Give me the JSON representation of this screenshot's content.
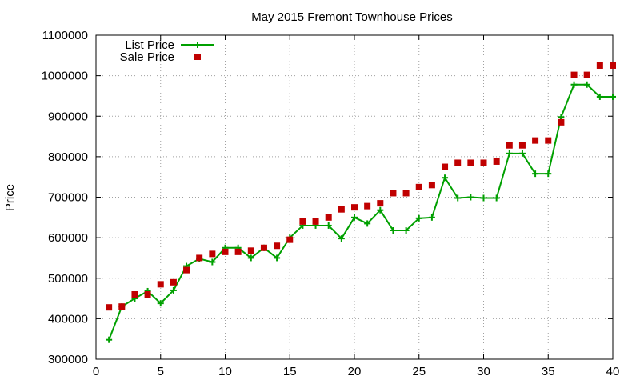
{
  "chart_data": {
    "type": "line",
    "title": "May 2015 Fremont Townhouse Prices",
    "xlabel": "",
    "ylabel": "Price",
    "xlim": [
      0,
      40
    ],
    "ylim": [
      300000,
      1100000
    ],
    "x_ticks": [
      0,
      5,
      10,
      15,
      20,
      25,
      30,
      35,
      40
    ],
    "y_ticks": [
      300000,
      400000,
      500000,
      600000,
      700000,
      800000,
      900000,
      1000000,
      1100000
    ],
    "grid": true,
    "legend_position": "top-left",
    "x": [
      1,
      2,
      3,
      4,
      5,
      6,
      7,
      8,
      9,
      10,
      11,
      12,
      13,
      14,
      15,
      16,
      17,
      18,
      19,
      20,
      21,
      22,
      23,
      24,
      25,
      26,
      27,
      28,
      29,
      30,
      31,
      32,
      33,
      34,
      35,
      36,
      37,
      38,
      39,
      40
    ],
    "series": [
      {
        "name": "List Price",
        "style": "line-plus",
        "color": "#00a000",
        "values": [
          348000,
          430000,
          450000,
          468000,
          438000,
          470000,
          530000,
          548000,
          540000,
          575000,
          575000,
          550000,
          575000,
          550000,
          600000,
          630000,
          630000,
          630000,
          598000,
          650000,
          635000,
          668000,
          618000,
          618000,
          648000,
          650000,
          748000,
          698000,
          700000,
          698000,
          698000,
          808000,
          808000,
          758000,
          758000,
          898000,
          978000,
          978000,
          948000,
          948000
        ]
      },
      {
        "name": "Sale Price",
        "style": "square-points",
        "color": "#c00000",
        "values": [
          428000,
          430000,
          460000,
          460000,
          485000,
          490000,
          520000,
          550000,
          560000,
          565000,
          565000,
          568000,
          575000,
          580000,
          595000,
          640000,
          640000,
          650000,
          670000,
          675000,
          678000,
          685000,
          710000,
          710000,
          725000,
          730000,
          775000,
          785000,
          785000,
          785000,
          788000,
          828000,
          828000,
          840000,
          840000,
          885000,
          1002000,
          1002000,
          1025000,
          1025000
        ]
      }
    ]
  }
}
